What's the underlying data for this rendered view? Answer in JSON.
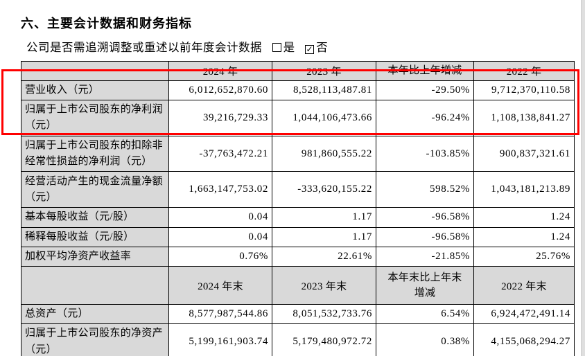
{
  "page": {
    "title": "六、主要会计数据和财务指标",
    "subtitle": {
      "question": "公司是否需追溯调整或重述以前年度会计数据",
      "options": [
        {
          "label": "是",
          "checked": false
        },
        {
          "label": "否",
          "checked": true
        }
      ]
    },
    "icons": {
      "check": "✓"
    }
  },
  "table": {
    "highlight_color": "#ff0000",
    "header_bg": "#d9d9d9",
    "sections": [
      {
        "headers": [
          "",
          "2024 年",
          "2023 年",
          "本年比上年增减",
          "2022 年"
        ],
        "rows": [
          {
            "label": "营业收入（元）",
            "values": [
              "6,012,652,870.60",
              "8,528,113,487.81",
              "-29.50%",
              "9,712,370,110.58"
            ]
          },
          {
            "label": "归属于上市公司股东的净利润（元）",
            "values": [
              "39,216,729.33",
              "1,044,106,473.66",
              "-96.24%",
              "1,108,138,841.27"
            ]
          },
          {
            "label": "归属于上市公司股东的扣除非经常性损益的净利润（元）",
            "values": [
              "-37,763,472.21",
              "981,860,555.22",
              "-103.85%",
              "900,837,321.61"
            ]
          },
          {
            "label": "经营活动产生的现金流量净额（元）",
            "values": [
              "1,663,147,753.02",
              "-333,620,155.22",
              "598.52%",
              "1,043,181,213.89"
            ]
          },
          {
            "label": "基本每股收益（元/股）",
            "values": [
              "0.04",
              "1.17",
              "-96.58%",
              "1.24"
            ]
          },
          {
            "label": "稀释每股收益（元/股）",
            "values": [
              "0.04",
              "1.17",
              "-96.58%",
              "1.24"
            ]
          },
          {
            "label": "加权平均净资产收益率",
            "values": [
              "0.76%",
              "22.61%",
              "-21.85%",
              "25.76%"
            ]
          }
        ]
      },
      {
        "headers": [
          "",
          "2024 年末",
          "2023 年末",
          "本年末比上年末增减",
          "2022 年末"
        ],
        "rows": [
          {
            "label": "总资产（元）",
            "values": [
              "8,577,987,544.86",
              "8,051,532,733.76",
              "6.54%",
              "6,924,472,491.14"
            ]
          },
          {
            "label": "归属于上市公司股东的净资产（元）",
            "values": [
              "5,199,161,903.74",
              "5,179,480,972.72",
              "0.38%",
              "4,155,068,294.27"
            ]
          }
        ]
      }
    ]
  }
}
